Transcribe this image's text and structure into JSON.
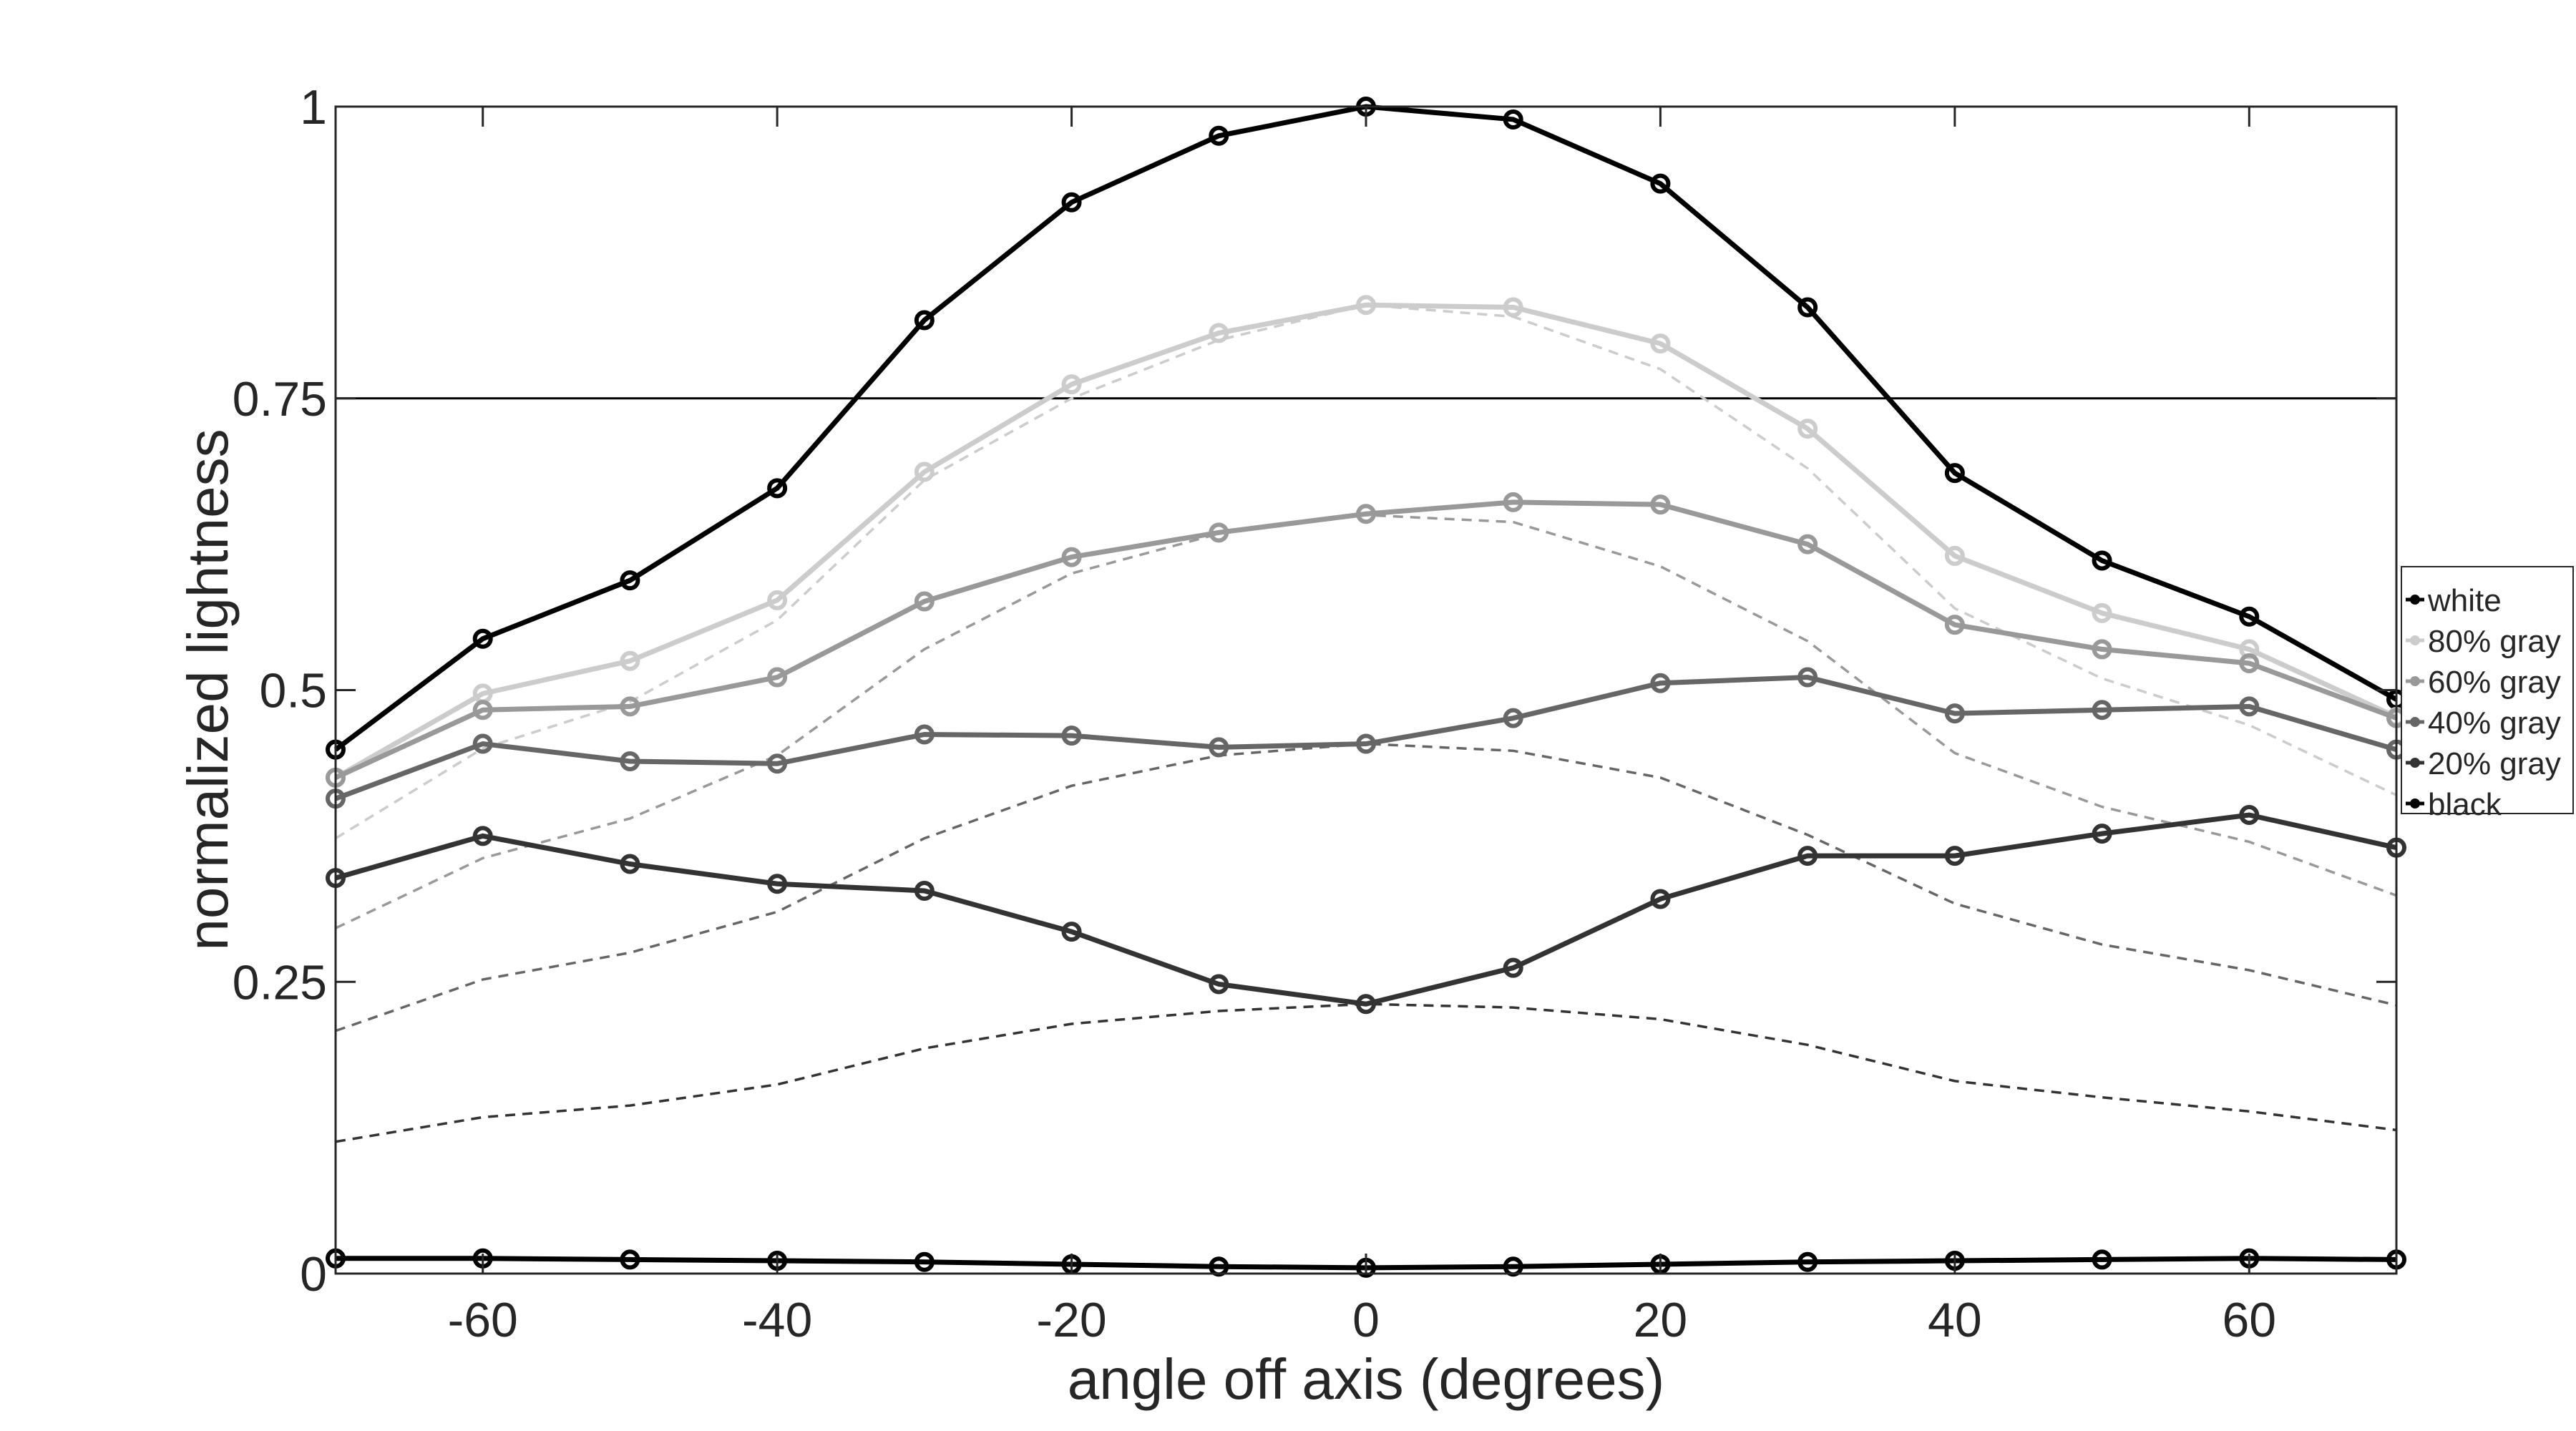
{
  "chart_data": {
    "type": "line",
    "title": "",
    "xlabel": "angle off axis (degrees)",
    "ylabel": "normalized lightness",
    "xlim": [
      -70,
      70
    ],
    "ylim": [
      0,
      1
    ],
    "xticks": [
      -60,
      -40,
      -20,
      0,
      20,
      40,
      60
    ],
    "xtick_labels": [
      "-60",
      "-40",
      "-20",
      "0",
      "20",
      "40",
      "60"
    ],
    "yticks": [
      0,
      0.25,
      0.5,
      0.75,
      1
    ],
    "ytick_labels": [
      "0",
      "0.25",
      "0.5",
      "0.75",
      "1"
    ],
    "grid": false,
    "reference_line": {
      "y": 0.75,
      "color": "#000000"
    },
    "legend_position": "right",
    "x": [
      -70,
      -60,
      -50,
      -40,
      -30,
      -20,
      -10,
      0,
      10,
      20,
      30,
      40,
      50,
      60,
      70
    ],
    "series": [
      {
        "name": "white",
        "color": "#000000",
        "marker": "circle",
        "values": [
          0.449,
          0.544,
          0.594,
          0.673,
          0.817,
          0.918,
          0.975,
          1.0,
          0.989,
          0.934,
          0.828,
          0.686,
          0.611,
          0.563,
          0.492
        ]
      },
      {
        "name": "80% gray",
        "color": "#cccccc",
        "marker": "circle",
        "values": [
          0.425,
          0.497,
          0.525,
          0.577,
          0.687,
          0.762,
          0.806,
          0.83,
          0.828,
          0.797,
          0.724,
          0.615,
          0.566,
          0.535,
          0.477
        ]
      },
      {
        "name": "60% gray",
        "color": "#999999",
        "marker": "circle",
        "values": [
          0.425,
          0.483,
          0.486,
          0.511,
          0.576,
          0.614,
          0.635,
          0.651,
          0.661,
          0.659,
          0.625,
          0.556,
          0.535,
          0.523,
          0.476
        ]
      },
      {
        "name": "40% gray",
        "color": "#666666",
        "marker": "circle",
        "values": [
          0.407,
          0.454,
          0.439,
          0.437,
          0.462,
          0.461,
          0.451,
          0.454,
          0.476,
          0.506,
          0.511,
          0.48,
          0.483,
          0.486,
          0.449
        ]
      },
      {
        "name": "20% gray",
        "color": "#333333",
        "marker": "circle",
        "values": [
          0.339,
          0.375,
          0.351,
          0.334,
          0.328,
          0.293,
          0.248,
          0.231,
          0.262,
          0.321,
          0.358,
          0.358,
          0.377,
          0.393,
          0.365
        ]
      },
      {
        "name": "black",
        "color": "#000000",
        "marker": "circle",
        "values": [
          0.013,
          0.013,
          0.012,
          0.011,
          0.01,
          0.008,
          0.006,
          0.005,
          0.006,
          0.008,
          0.01,
          0.011,
          0.012,
          0.013,
          0.012
        ]
      }
    ],
    "dashed_series": [
      {
        "color": "#cccccc",
        "values": [
          0.373,
          0.45,
          0.49,
          0.56,
          0.68,
          0.75,
          0.8,
          0.83,
          0.82,
          0.775,
          0.69,
          0.57,
          0.51,
          0.47,
          0.41
        ]
      },
      {
        "color": "#999999",
        "values": [
          0.296,
          0.356,
          0.39,
          0.444,
          0.535,
          0.6,
          0.634,
          0.65,
          0.644,
          0.606,
          0.542,
          0.446,
          0.4,
          0.37,
          0.324
        ]
      },
      {
        "color": "#666666",
        "values": [
          0.208,
          0.252,
          0.275,
          0.31,
          0.373,
          0.418,
          0.444,
          0.454,
          0.448,
          0.425,
          0.376,
          0.317,
          0.282,
          0.26,
          0.23
        ]
      },
      {
        "color": "#333333",
        "values": [
          0.113,
          0.134,
          0.144,
          0.162,
          0.193,
          0.214,
          0.225,
          0.231,
          0.228,
          0.218,
          0.196,
          0.165,
          0.151,
          0.139,
          0.123
        ]
      }
    ]
  }
}
